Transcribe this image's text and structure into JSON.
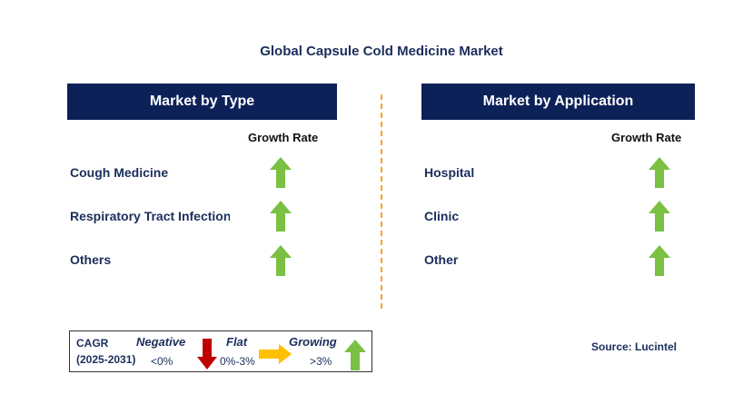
{
  "title": "Global Capsule Cold Medicine Market",
  "left_panel": {
    "header": "Market by Type",
    "growth_rate_label": "Growth Rate",
    "items": [
      {
        "label": "Cough Medicine",
        "trend": "growing"
      },
      {
        "label": "Respiratory Tract Infection",
        "trend": "growing"
      },
      {
        "label": "Others",
        "trend": "growing"
      }
    ]
  },
  "right_panel": {
    "header": "Market by Application",
    "growth_rate_label": "Growth Rate",
    "items": [
      {
        "label": "Hospital",
        "trend": "growing"
      },
      {
        "label": "Clinic",
        "trend": "growing"
      },
      {
        "label": "Other",
        "trend": "growing"
      }
    ]
  },
  "legend": {
    "cagr_label": "CAGR",
    "period": "(2025-2031)",
    "negative": {
      "label": "Negative",
      "range": "<0%",
      "icon": "down-arrow-icon",
      "color": "#c00000"
    },
    "flat": {
      "label": "Flat",
      "range": "0%-3%",
      "icon": "right-arrow-icon",
      "color": "#ffc000"
    },
    "growing": {
      "label": "Growing",
      "range": ">3%",
      "icon": "up-arrow-icon",
      "color": "#7ac143"
    }
  },
  "source": "Source: Lucintel",
  "colors": {
    "header_bg": "#0d2159",
    "divider": "#f5a623",
    "text_navy": "#1a2e5c"
  }
}
